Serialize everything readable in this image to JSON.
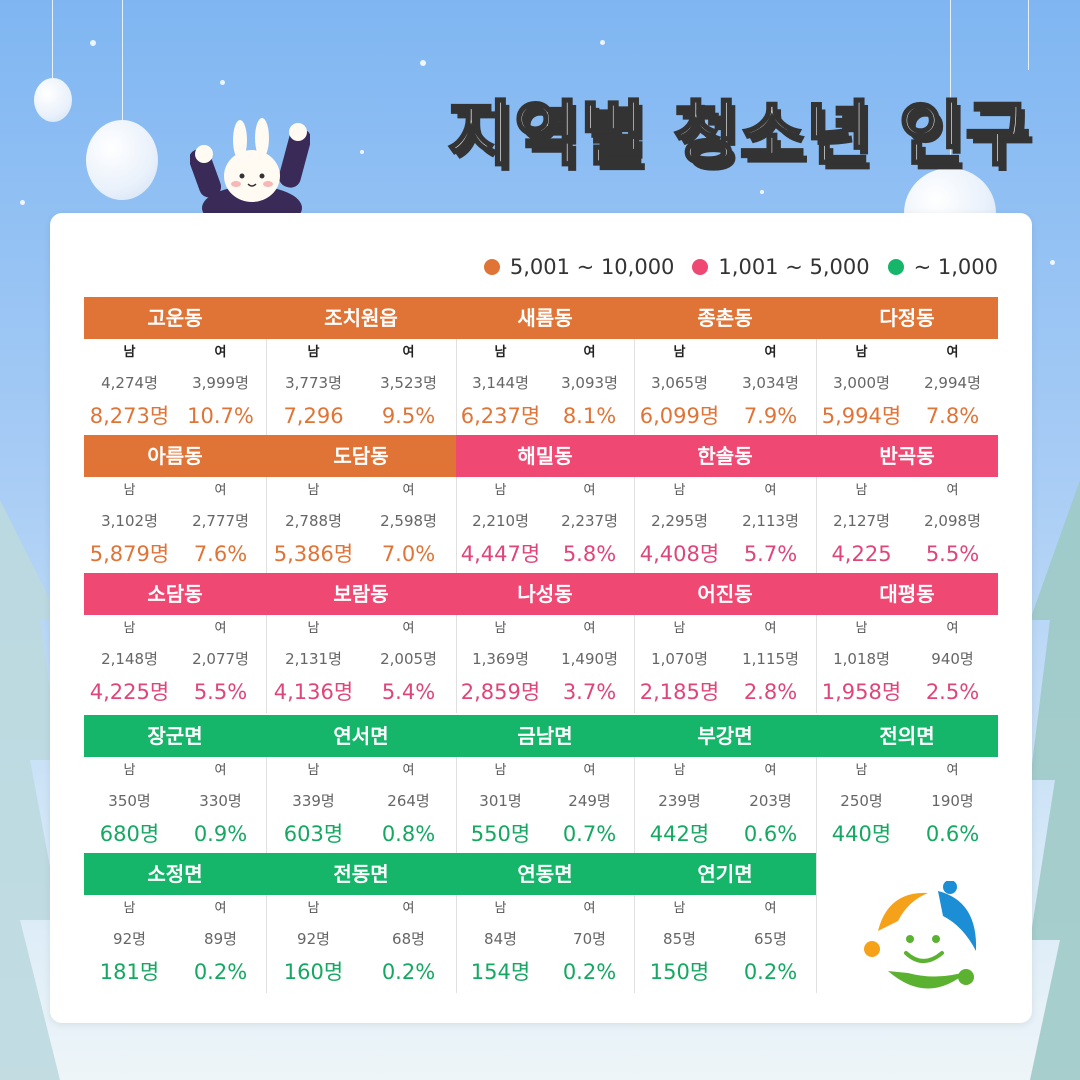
{
  "title": "지역별 청소년 인구",
  "legend": [
    {
      "label": "5,001 ~ 10,000",
      "color": "#e07436"
    },
    {
      "label": "1,001 ~ 5,000",
      "color": "#ee4873"
    },
    {
      "label": "~ 1,000",
      "color": "#15b56a"
    }
  ],
  "sex_labels": {
    "male": "남",
    "female": "여"
  },
  "regions": [
    {
      "name": "고운동",
      "male": "4,274명",
      "female": "3,999명",
      "total": "8,273명",
      "pct": "10.7%",
      "tier": "orange"
    },
    {
      "name": "조치원읍",
      "male": "3,773명",
      "female": "3,523명",
      "total": "7,296",
      "pct": "9.5%",
      "tier": "orange"
    },
    {
      "name": "새롬동",
      "male": "3,144명",
      "female": "3,093명",
      "total": "6,237명",
      "pct": "8.1%",
      "tier": "orange"
    },
    {
      "name": "종촌동",
      "male": "3,065명",
      "female": "3,034명",
      "total": "6,099명",
      "pct": "7.9%",
      "tier": "orange"
    },
    {
      "name": "다정동",
      "male": "3,000명",
      "female": "2,994명",
      "total": "5,994명",
      "pct": "7.8%",
      "tier": "orange"
    },
    {
      "name": "아름동",
      "male": "3,102명",
      "female": "2,777명",
      "total": "5,879명",
      "pct": "7.6%",
      "tier": "orange"
    },
    {
      "name": "도담동",
      "male": "2,788명",
      "female": "2,598명",
      "total": "5,386명",
      "pct": "7.0%",
      "tier": "orange"
    },
    {
      "name": "해밀동",
      "male": "2,210명",
      "female": "2,237명",
      "total": "4,447명",
      "pct": "5.8%",
      "tier": "pink"
    },
    {
      "name": "한솔동",
      "male": "2,295명",
      "female": "2,113명",
      "total": "4,408명",
      "pct": "5.7%",
      "tier": "pink"
    },
    {
      "name": "반곡동",
      "male": "2,127명",
      "female": "2,098명",
      "total": "4,225",
      "pct": "5.5%",
      "tier": "pink"
    },
    {
      "name": "소담동",
      "male": "2,148명",
      "female": "2,077명",
      "total": "4,225명",
      "pct": "5.5%",
      "tier": "pink"
    },
    {
      "name": "보람동",
      "male": "2,131명",
      "female": "2,005명",
      "total": "4,136명",
      "pct": "5.4%",
      "tier": "pink"
    },
    {
      "name": "나성동",
      "male": "1,369명",
      "female": "1,490명",
      "total": "2,859명",
      "pct": "3.7%",
      "tier": "pink"
    },
    {
      "name": "어진동",
      "male": "1,070명",
      "female": "1,115명",
      "total": "2,185명",
      "pct": "2.8%",
      "tier": "pink"
    },
    {
      "name": "대평동",
      "male": "1,018명",
      "female": "940명",
      "total": "1,958명",
      "pct": "2.5%",
      "tier": "pink"
    },
    {
      "name": "장군면",
      "male": "350명",
      "female": "330명",
      "total": "680명",
      "pct": "0.9%",
      "tier": "green"
    },
    {
      "name": "연서면",
      "male": "339명",
      "female": "264명",
      "total": "603명",
      "pct": "0.8%",
      "tier": "green"
    },
    {
      "name": "금남면",
      "male": "301명",
      "female": "249명",
      "total": "550명",
      "pct": "0.7%",
      "tier": "green"
    },
    {
      "name": "부강면",
      "male": "239명",
      "female": "203명",
      "total": "442명",
      "pct": "0.6%",
      "tier": "green"
    },
    {
      "name": "전의면",
      "male": "250명",
      "female": "190명",
      "total": "440명",
      "pct": "0.6%",
      "tier": "green"
    },
    {
      "name": "소정면",
      "male": "92명",
      "female": "89명",
      "total": "181명",
      "pct": "0.2%",
      "tier": "green"
    },
    {
      "name": "전동면",
      "male": "92명",
      "female": "68명",
      "total": "160명",
      "pct": "0.2%",
      "tier": "green"
    },
    {
      "name": "연동면",
      "male": "84명",
      "female": "70명",
      "total": "154명",
      "pct": "0.2%",
      "tier": "green"
    },
    {
      "name": "연기면",
      "male": "85명",
      "female": "65명",
      "total": "150명",
      "pct": "0.2%",
      "tier": "green"
    }
  ],
  "colors": {
    "orange_header": "#e07436",
    "orange_text": "#e07436",
    "pink_header": "#ee4873",
    "pink_text": "#e0457a",
    "green_header": "#15b56a",
    "green_text": "#15a862"
  },
  "decorations": {
    "mascot": "bunny-in-sweater",
    "logo": "smiling-figures-logo"
  }
}
